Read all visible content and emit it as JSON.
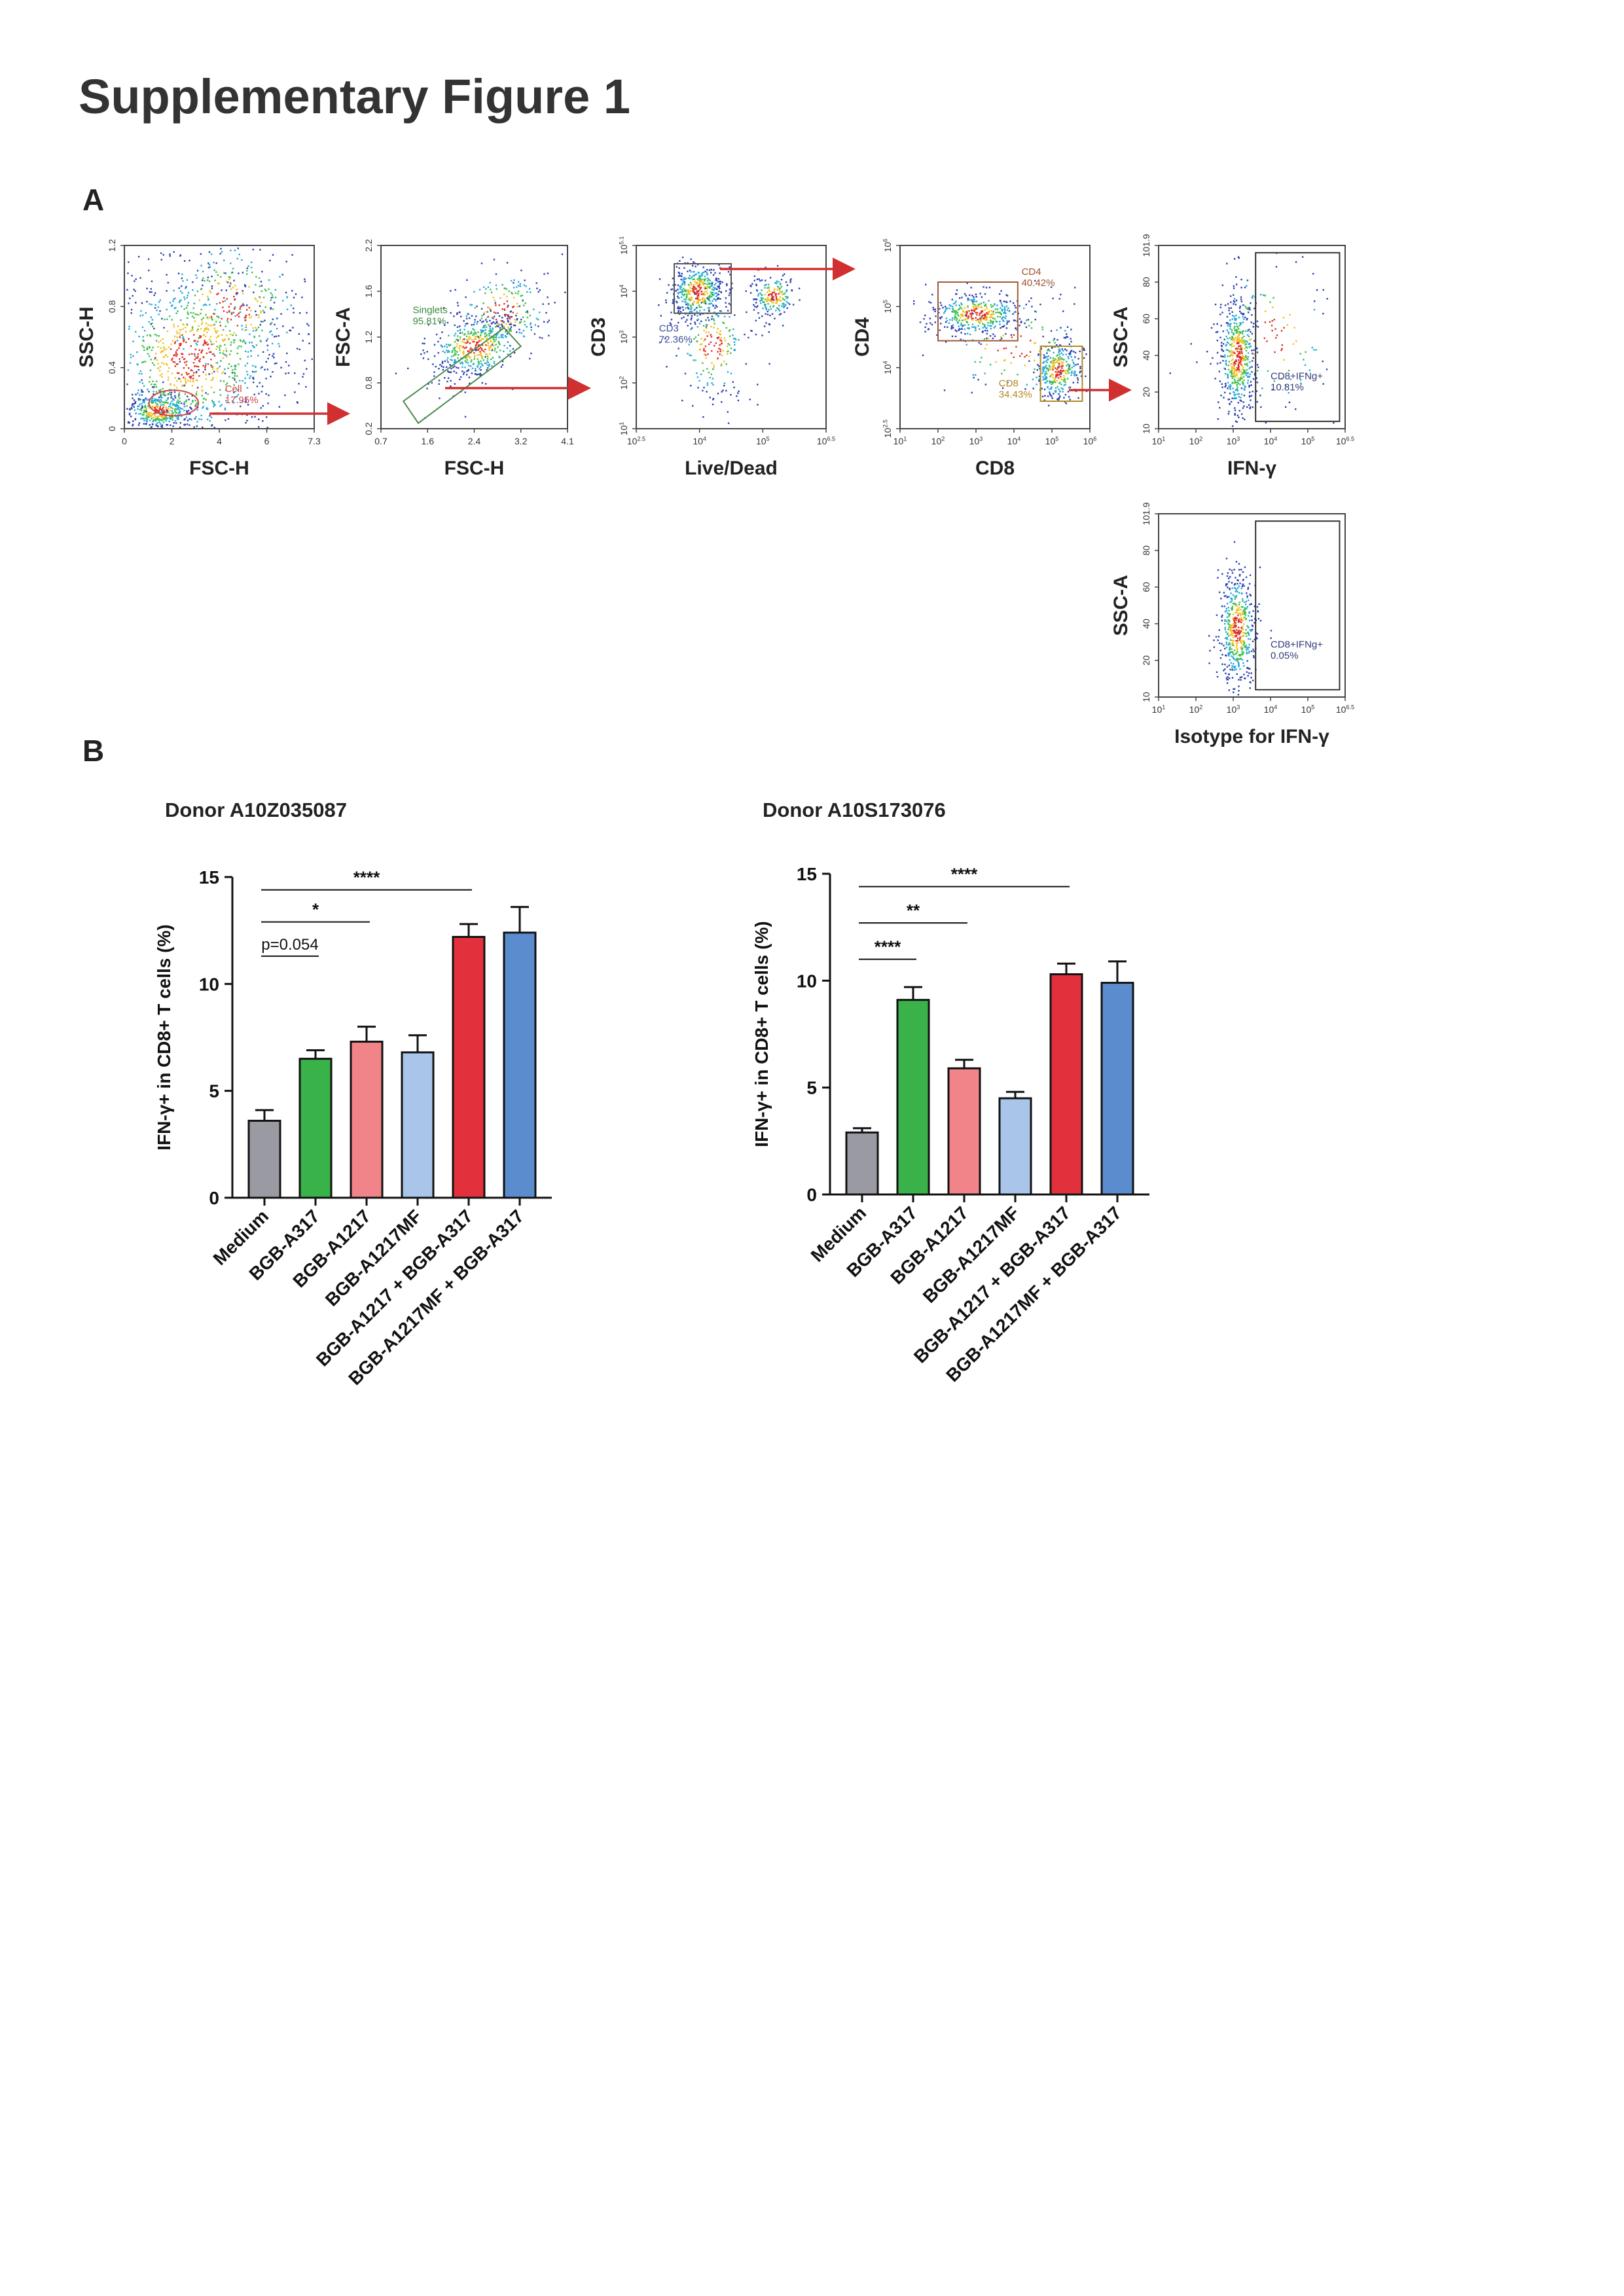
{
  "figure_title": "Supplementary Figure 1",
  "panel_a_label": "A",
  "panel_b_label": "B",
  "colors": {
    "gate_arrow": "#d03030",
    "medium": "#9a9aa2",
    "bgb_a317": "#3ab24a",
    "bgb_a1217": "#f08488",
    "bgb_a1217mf": "#a9c6ea",
    "combo_a1217": "#e2313c",
    "combo_a1217mf": "#5b8ccd"
  },
  "flow_plots": [
    {
      "x_label": "FSC-H",
      "y_label": "SSC-H",
      "x_ticks": [
        "0",
        "2",
        "4",
        "6",
        "7.3"
      ],
      "y_ticks": [
        "0",
        "0.4",
        "0.8",
        "1.2"
      ],
      "gate_name": "Cell",
      "gate_pct": "17.95%"
    },
    {
      "x_label": "FSC-H",
      "y_label": "FSC-A",
      "x_ticks": [
        "0.7",
        "1.6",
        "2.4",
        "3.2",
        "4.1"
      ],
      "y_ticks": [
        "0.2",
        "0.8",
        "1.2",
        "1.6",
        "2.2"
      ],
      "gate_name": "Singlets",
      "gate_pct": "95.81%"
    },
    {
      "x_label": "Live/Dead",
      "y_label": "CD3",
      "x_ticks": [
        "10^2.5",
        "10^4",
        "10^5",
        "10^6.5"
      ],
      "y_ticks": [
        "10^1",
        "10^2",
        "10^3",
        "10^4",
        "10^5.1"
      ],
      "gate_name": "CD3",
      "gate_pct": "72.36%"
    },
    {
      "x_label": "CD8",
      "y_label": "CD4",
      "x_ticks": [
        "10^1",
        "10^2",
        "10^3",
        "10^4",
        "10^5",
        "10^6"
      ],
      "y_ticks": [
        "10^2.5",
        "10^4",
        "10^5",
        "10^6"
      ],
      "gate_name": "CD4",
      "gate_pct": "40.42%",
      "gate2_name": "CD8",
      "gate2_pct": "34.43%"
    },
    {
      "x_label": "IFN-γ",
      "y_label": "SSC-A",
      "x_ticks": [
        "10^1",
        "10^2",
        "10^3",
        "10^4",
        "10^5",
        "10^6.5"
      ],
      "y_ticks": [
        "10",
        "20",
        "40",
        "60",
        "80",
        "101.9"
      ],
      "gate_name": "CD8+IFNg+",
      "gate_pct": "10.81%"
    },
    {
      "x_label": "Isotype for IFN-γ",
      "y_label": "SSC-A",
      "x_ticks": [
        "10^1",
        "10^2",
        "10^3",
        "10^4",
        "10^5",
        "10^6.5"
      ],
      "y_ticks": [
        "10",
        "20",
        "40",
        "60",
        "80",
        "101.9"
      ],
      "gate_name": "CD8+IFNg+",
      "gate_pct": "0.05%"
    }
  ],
  "chart_data": [
    {
      "type": "bar",
      "title": "Donor A10Z035087",
      "ylabel": "IFN-γ+ in CD8+ T cells (%)",
      "ylim": [
        0,
        15
      ],
      "y_ticks": [
        "0",
        "5",
        "10",
        "15"
      ],
      "categories": [
        "Medium",
        "BGB-A317",
        "BGB-A1217",
        "BGB-A1217MF",
        "BGB-A1217 + BGB-A317",
        "BGB-A1217MF + BGB-A317"
      ],
      "values": [
        3.6,
        6.5,
        7.3,
        6.8,
        12.2,
        12.4
      ],
      "errors": [
        0.5,
        0.4,
        0.7,
        0.8,
        0.6,
        1.2
      ],
      "annotations": [
        {
          "text": "****",
          "from": 0,
          "to": 4,
          "y": 14.4
        },
        {
          "text": "*",
          "from": 0,
          "to": 2,
          "y": 12.9
        },
        {
          "text": "p=0.054",
          "from": 0,
          "to": 1,
          "y": 11.3
        }
      ]
    },
    {
      "type": "bar",
      "title": "Donor A10S173076",
      "ylabel": "IFN-γ+ in CD8+ T cells (%)",
      "ylim": [
        0,
        15
      ],
      "y_ticks": [
        "0",
        "5",
        "10",
        "15"
      ],
      "categories": [
        "Medium",
        "BGB-A317",
        "BGB-A1217",
        "BGB-A1217MF",
        "BGB-A1217 + BGB-A317",
        "BGB-A1217MF + BGB-A317"
      ],
      "values": [
        2.9,
        9.1,
        5.9,
        4.5,
        10.3,
        9.9
      ],
      "errors": [
        0.2,
        0.6,
        0.4,
        0.3,
        0.5,
        1.0
      ],
      "annotations": [
        {
          "text": "****",
          "from": 0,
          "to": 4,
          "y": 14.4
        },
        {
          "text": "**",
          "from": 0,
          "to": 2,
          "y": 12.7
        },
        {
          "text": "****",
          "from": 0,
          "to": 1,
          "y": 11.0
        }
      ]
    }
  ]
}
